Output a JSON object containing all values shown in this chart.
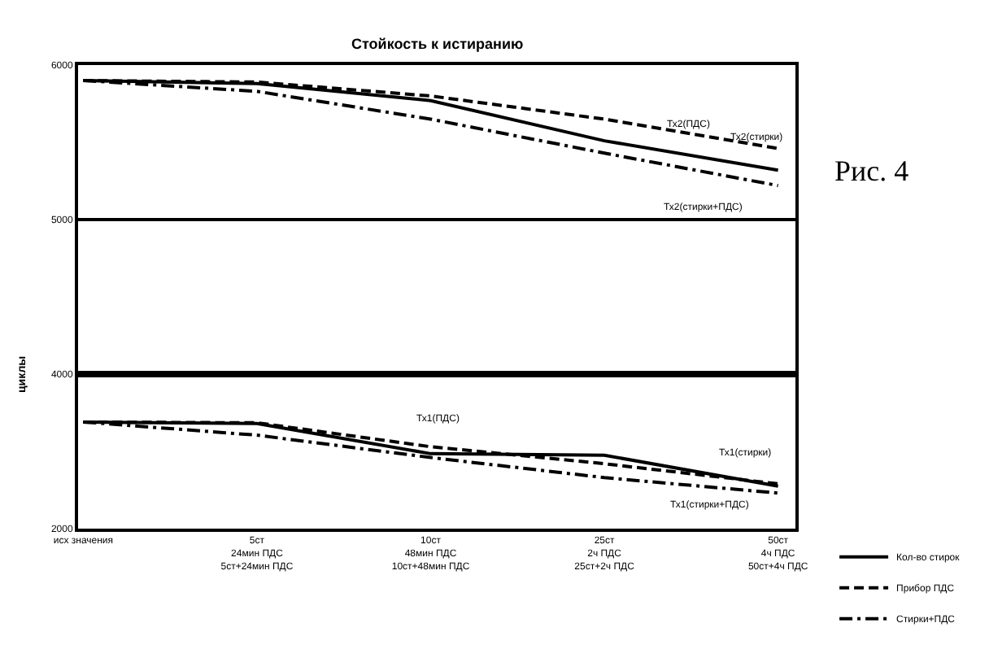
{
  "chart_data": [
    {
      "type": "line",
      "title": "Стойкость к истиранию",
      "ylabel": "циклы",
      "categories": [
        "исх значения",
        "5ст\n24мин ПДС\n5ст+24мин ПДС",
        "10ст\n48мин ПДС\n10ст+48мин ПДС",
        "25ст\n2ч ПДС\n25ст+2ч ПДС",
        "50ст\n4ч ПДС\n50ст+4ч ПДС"
      ],
      "series": [
        {
          "color": "#000000",
          "line_style": "solid",
          "values": [
            5900,
            5880,
            5770,
            5510,
            5320
          ]
        },
        {
          "color": "#000000",
          "line_style": "dashed",
          "values": [
            5900,
            5890,
            5800,
            5650,
            5460
          ]
        },
        {
          "color": "#000000",
          "line_style": "dashdot",
          "values": [
            5900,
            5830,
            5650,
            5430,
            5220
          ]
        }
      ],
      "ylim": [
        4000,
        6000
      ],
      "yticks": [
        5000,
        6000
      ],
      "grid": "y",
      "tick_labels": "y",
      "legend": false,
      "annotations": [
        "Тх2(ПДС)",
        "Тх2(стирки)",
        "Тх2(стирки+ПДС)",
        "Рис. 4"
      ]
    },
    {
      "type": "line",
      "categories": [
        "исх значения",
        "5ст\n24мин ПДС\n5ст+24мин ПДС",
        "10ст\n48мин ПДС\n10ст+48мин ПДС",
        "25ст\n2ч ПДС\n25ст+2ч ПДС",
        "50ст\n4ч ПДС\n50ст+4ч ПДС"
      ],
      "series": [
        {
          "name": "Кол-во стирок",
          "color": "#000000",
          "line_style": "solid",
          "values": [
            3380,
            3360,
            2970,
            2950,
            2550
          ]
        },
        {
          "name": "Прибор ПДС",
          "color": "#000000",
          "line_style": "dashed",
          "values": [
            3380,
            3370,
            3060,
            2840,
            2580
          ]
        },
        {
          "name": "Стирки+ПДС",
          "color": "#000000",
          "line_style": "dashdot",
          "values": [
            3380,
            3210,
            2920,
            2660,
            2460
          ]
        }
      ],
      "ylim": [
        2000,
        4000
      ],
      "yticks": [
        2000,
        4000
      ],
      "legend": "bottom right",
      "annotations": [
        "Тх1(ПДС)",
        "Тх1(стирки)",
        "Тх1(стирки+ПДС)"
      ]
    }
  ]
}
